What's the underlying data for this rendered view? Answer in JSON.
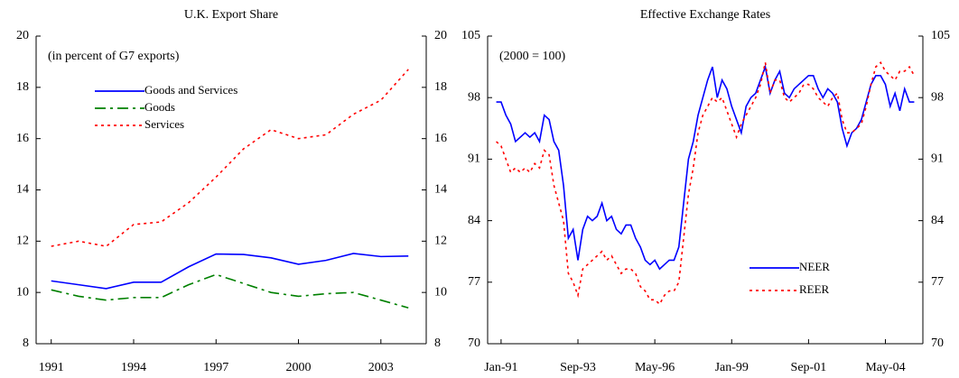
{
  "chart_data": [
    {
      "type": "line",
      "title": "U.K. Export Share",
      "annotation": "(in percent of G7 exports)",
      "x": [
        1991,
        1992,
        1993,
        1994,
        1995,
        1996,
        1997,
        1998,
        1999,
        2000,
        2001,
        2002,
        2003,
        2004
      ],
      "xlim": [
        1990.45,
        2004.65
      ],
      "xticks": [
        1991,
        1994,
        1997,
        2000,
        2003
      ],
      "ylim": [
        8,
        20
      ],
      "yticks": [
        8,
        10,
        12,
        14,
        16,
        18,
        20
      ],
      "y2lim": [
        8,
        20
      ],
      "y2ticks": [
        8,
        10,
        12,
        14,
        16,
        18,
        20
      ],
      "legend": "upper left",
      "series": [
        {
          "name": "Goods and Services",
          "color": "#0000ff",
          "style": "solid",
          "values": [
            10.45,
            10.3,
            10.15,
            10.4,
            10.4,
            11.0,
            11.5,
            11.48,
            11.35,
            11.1,
            11.25,
            11.52,
            11.4,
            11.42
          ]
        },
        {
          "name": "Goods",
          "color": "#008000",
          "style": "dashdot",
          "values": [
            10.1,
            9.85,
            9.7,
            9.8,
            9.8,
            10.3,
            10.7,
            10.35,
            10.0,
            9.85,
            9.95,
            10.0,
            9.7,
            9.4
          ]
        },
        {
          "name": "Services",
          "color": "#ff0000",
          "style": "dotted",
          "values": [
            11.8,
            12.0,
            11.8,
            12.65,
            12.75,
            13.5,
            14.5,
            15.6,
            16.35,
            16.0,
            16.15,
            16.95,
            17.5,
            18.7
          ]
        }
      ]
    },
    {
      "type": "line",
      "title": "Effective Exchange Rates",
      "annotation": "(2000 = 100)",
      "categories": [
        null,
        "Jan-91",
        null,
        null,
        null,
        null,
        null,
        null,
        null,
        null,
        null,
        null,
        null,
        null,
        null,
        null,
        null,
        "Sep-93",
        null,
        null,
        null,
        null,
        null,
        null,
        null,
        null,
        null,
        null,
        null,
        null,
        null,
        null,
        null,
        "May-96",
        null,
        null,
        null,
        null,
        null,
        null,
        null,
        null,
        null,
        null,
        null,
        null,
        null,
        null,
        null,
        "Jan-99",
        null,
        null,
        null,
        null,
        null,
        null,
        null,
        null,
        null,
        null,
        null,
        null,
        null,
        null,
        null,
        "Sep-01",
        null,
        null,
        null,
        null,
        null,
        null,
        null,
        null,
        null,
        null,
        null,
        null,
        null,
        null,
        null,
        "May-04",
        null,
        null,
        null,
        null,
        null,
        null
      ],
      "ylim": [
        70,
        105
      ],
      "yticks": [
        70,
        77,
        84,
        91,
        98,
        105
      ],
      "y2lim": [
        70,
        105
      ],
      "y2ticks": [
        70,
        77,
        84,
        91,
        98,
        105
      ],
      "legend": "lower right",
      "series": [
        {
          "name": "NEER",
          "color": "#0000ff",
          "style": "solid",
          "values": [
            97.5,
            97.5,
            96,
            95,
            93,
            93.5,
            94,
            93.5,
            94,
            93,
            96,
            95.5,
            93,
            92,
            88,
            82,
            83,
            79.5,
            83,
            84.5,
            84,
            84.5,
            86,
            84,
            84.5,
            83,
            82.5,
            83.5,
            83.5,
            82,
            81,
            79.5,
            79,
            79.5,
            78.5,
            79,
            79.5,
            79.5,
            81,
            86,
            91,
            93,
            96,
            98,
            100,
            101.5,
            98,
            100,
            99,
            97,
            95.5,
            94,
            97,
            98,
            98.5,
            100,
            101.5,
            98.5,
            100,
            101,
            98.5,
            98,
            99,
            99.5,
            100,
            100.5,
            100.5,
            99,
            98,
            99,
            98.5,
            97.5,
            94.5,
            92.5,
            94,
            94.5,
            95.5,
            97.5,
            99.5,
            100.5,
            100.5,
            99.5,
            97,
            98.5,
            96.5,
            99,
            97.5,
            97.5
          ]
        },
        {
          "name": "REER",
          "color": "#ff0000",
          "style": "dotted",
          "values": [
            93,
            92.5,
            91,
            89.5,
            90,
            89.5,
            90,
            89.5,
            90.5,
            90,
            92,
            91.5,
            88,
            86,
            84,
            78,
            77,
            75.5,
            78.5,
            79,
            79.5,
            80,
            80.5,
            79.5,
            80,
            79,
            78,
            78.5,
            78.5,
            78,
            76.5,
            76,
            75,
            75,
            74.5,
            75.5,
            76,
            76,
            77,
            82,
            87,
            90,
            94,
            96,
            97,
            98,
            97.5,
            98,
            96.5,
            95,
            93.5,
            95,
            96,
            97,
            98,
            99.5,
            102,
            98.5,
            100,
            100,
            98,
            97.5,
            98,
            98.5,
            99.5,
            99.5,
            99,
            98,
            97.5,
            97,
            98,
            98.5,
            95.5,
            94,
            94,
            94.5,
            95,
            97,
            99.5,
            101.5,
            102,
            101,
            100.5,
            100,
            101,
            101,
            101.5,
            100.5
          ]
        }
      ]
    }
  ]
}
